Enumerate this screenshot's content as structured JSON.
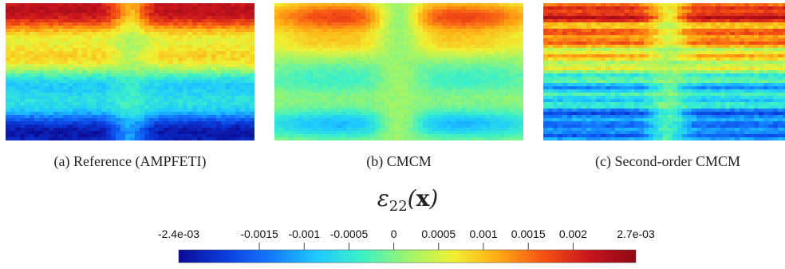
{
  "panels": [
    {
      "id": "a",
      "caption": "(a) Reference (AMPFETI)",
      "pattern": "strong"
    },
    {
      "id": "b",
      "caption": "(b) CMCM",
      "pattern": "weak"
    },
    {
      "id": "c",
      "caption": "(c) Second-order CMCM",
      "pattern": "banded"
    }
  ],
  "colorbar": {
    "title_symbol": "ε",
    "title_subscript": "22",
    "title_open": "(",
    "title_var": "x",
    "title_close": ")",
    "min_label": "-2.4e-03",
    "max_label": "2.7e-03",
    "min": -0.0024,
    "max": 0.0027,
    "ticks": [
      {
        "value": -0.0015,
        "label": "-0.0015"
      },
      {
        "value": -0.001,
        "label": "-0.001"
      },
      {
        "value": -0.0005,
        "label": "-0.0005"
      },
      {
        "value": 0,
        "label": "0"
      },
      {
        "value": 0.0005,
        "label": "0.0005"
      },
      {
        "value": 0.001,
        "label": "0.001"
      },
      {
        "value": 0.0015,
        "label": "0.0015"
      },
      {
        "value": 0.002,
        "label": "0.002"
      }
    ],
    "colormap": [
      "#0b0b96",
      "#0a3cdc",
      "#1478ff",
      "#1ec8ff",
      "#3cf0c8",
      "#9bf56e",
      "#f0f032",
      "#ffaa14",
      "#f55014",
      "#c8141e",
      "#8c0a14"
    ]
  }
}
